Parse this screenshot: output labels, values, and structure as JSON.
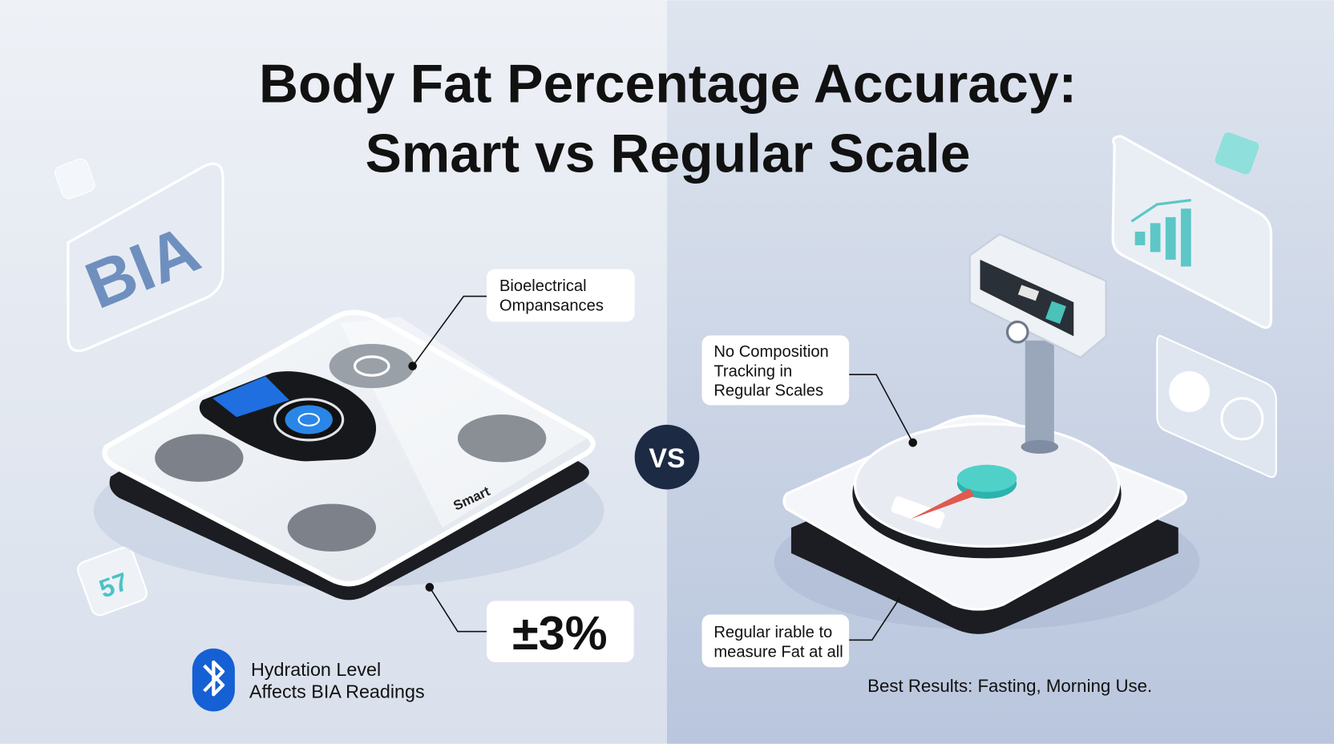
{
  "header": {
    "title_lines": [
      "Body Fat Percentage Accuracy:",
      "Smart vs Regular Scale"
    ]
  },
  "left": {
    "badge": "BIA",
    "device_label": "Smart",
    "callout": [
      "Bioelectrical",
      "Ompansances"
    ],
    "accuracy": "±3%",
    "note": [
      "Hydration Level",
      "Affects BIA Readings"
    ]
  },
  "divider": "VS",
  "right": {
    "callout_top": [
      "No Composition",
      "Tracking in",
      "Regular Scales"
    ],
    "callout_bottom": [
      "Regular irable to",
      "measure Fat at all"
    ],
    "note": "Best Results: Fasting, Morning Use."
  }
}
